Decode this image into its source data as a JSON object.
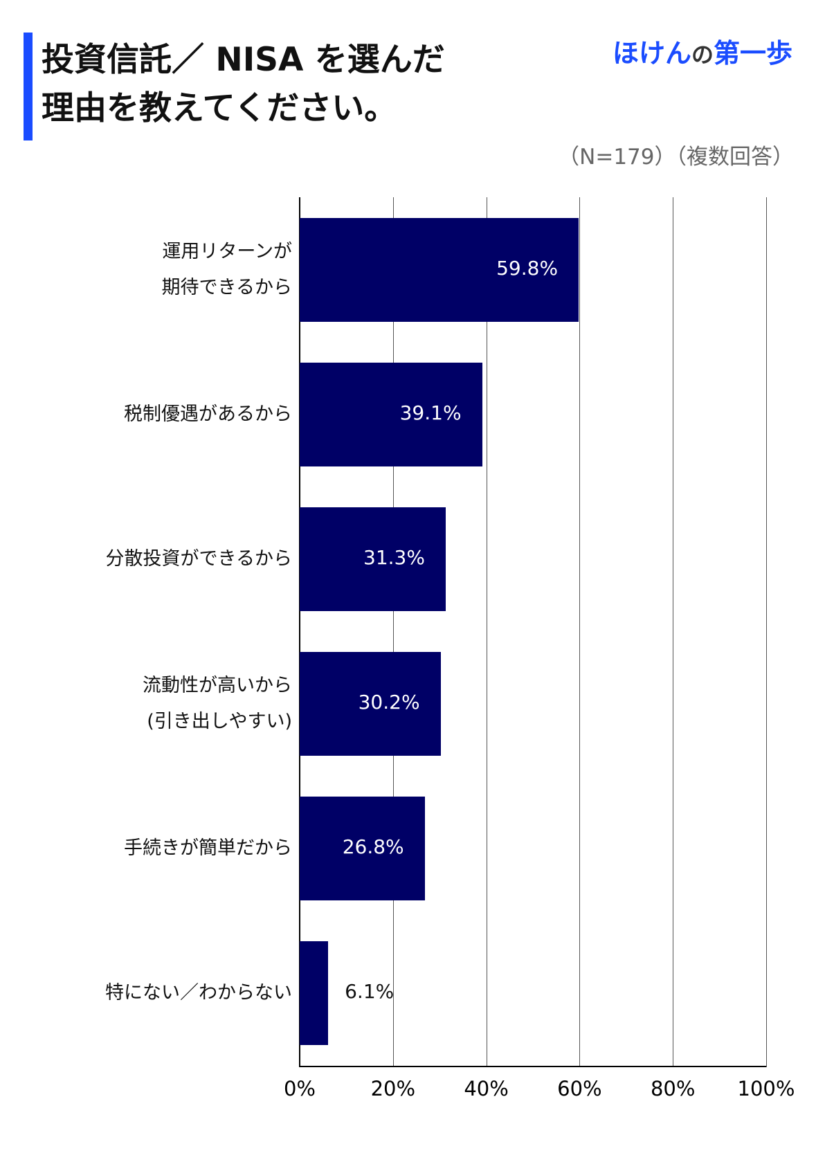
{
  "header": {
    "title_lines": [
      "投資信託／ NISA を選んだ",
      "理由を教えてください。"
    ],
    "logo": {
      "part1": "ほけん",
      "part2": "の",
      "part3": "第一歩"
    },
    "note": "（N=179）（複数回答）"
  },
  "colors": {
    "accent": "#1a4cff",
    "bar": "#000066",
    "logo_dark": "#333333",
    "note": "#666666"
  },
  "chart_data": {
    "type": "bar",
    "orientation": "horizontal",
    "title": "投資信託／ NISA を選んだ理由を教えてください。",
    "subtitle": "（N=179）（複数回答）",
    "categories": [
      "運用リターンが期待できるから",
      "税制優遇があるから",
      "分散投資ができるから",
      "流動性が高いから(引き出しやすい)",
      "手続きが簡単だから",
      "特にない／わからない"
    ],
    "category_lines": [
      [
        "運用リターンが",
        "期待できるから"
      ],
      [
        "税制優遇があるから"
      ],
      [
        "分散投資ができるから"
      ],
      [
        "流動性が高いから",
        "(引き出しやすい)"
      ],
      [
        "手続きが簡単だから"
      ],
      [
        "特にない／わからない"
      ]
    ],
    "values": [
      59.8,
      39.1,
      31.3,
      30.2,
      26.8,
      6.1
    ],
    "value_labels": [
      "59.8%",
      "39.1%",
      "31.3%",
      "30.2%",
      "26.8%",
      "6.1%"
    ],
    "xlabel": "",
    "ylabel": "",
    "xlim": [
      0,
      100
    ],
    "ticks": [
      "0%",
      "20%",
      "40%",
      "60%",
      "80%",
      "100%"
    ],
    "tick_values": [
      0,
      20,
      40,
      60,
      80,
      100
    ],
    "grid": true,
    "legend": null
  }
}
